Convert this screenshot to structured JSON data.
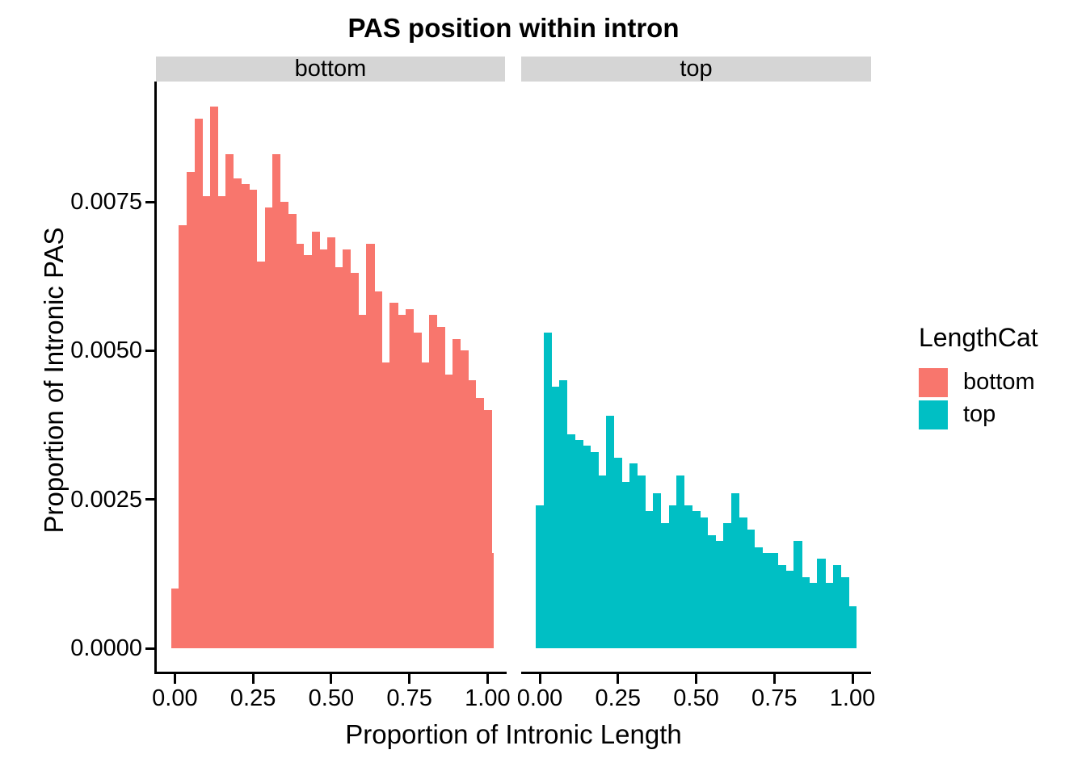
{
  "title": "PAS position within intron",
  "axes": {
    "x_title": "Proportion of Intronic Length",
    "y_title": "Proportion of Intronic PAS",
    "x_tick_labels": [
      "0.00",
      "0.25",
      "0.50",
      "0.75",
      "1.00"
    ],
    "x_tick_values": [
      0,
      0.25,
      0.5,
      0.75,
      1.0
    ],
    "y_tick_labels": [
      "0.0000",
      "0.0025",
      "0.0050",
      "0.0075"
    ],
    "y_tick_values": [
      0,
      0.0025,
      0.005,
      0.0075
    ]
  },
  "facet_strips": {
    "bottom": "bottom",
    "top": "top"
  },
  "legend": {
    "title": "LengthCat",
    "items": [
      {
        "label": "bottom",
        "color": "#F8766D"
      },
      {
        "label": "top",
        "color": "#00BFC4"
      }
    ]
  },
  "colors": {
    "bottom_fill": "#F8766D",
    "top_fill": "#00BFC4",
    "strip_bg": "#D5D5D5",
    "axis": "#000000"
  },
  "chart_data": {
    "type": "bar",
    "subtype": "faceted-histogram",
    "title": "PAS position within intron",
    "xlabel": "Proportion of Intronic Length",
    "ylabel": "Proportion of Intronic PAS",
    "bin_width": 0.025,
    "xlim": [
      -0.0125,
      1.04
    ],
    "ylim": [
      0,
      0.0095
    ],
    "grid": false,
    "legend_position": "right",
    "facets": [
      {
        "name": "bottom",
        "color": "#F8766D",
        "bin_centers": [
          0,
          0.025,
          0.05,
          0.075,
          0.1,
          0.125,
          0.15,
          0.175,
          0.2,
          0.225,
          0.25,
          0.275,
          0.3,
          0.325,
          0.35,
          0.375,
          0.4,
          0.425,
          0.45,
          0.475,
          0.5,
          0.525,
          0.55,
          0.575,
          0.6,
          0.625,
          0.65,
          0.675,
          0.7,
          0.725,
          0.75,
          0.775,
          0.8,
          0.825,
          0.85,
          0.875,
          0.9,
          0.925,
          0.95,
          0.975,
          1.0,
          1.0125
        ],
        "values": [
          0.001,
          0.0071,
          0.008,
          0.0089,
          0.0076,
          0.0091,
          0.0076,
          0.0083,
          0.0079,
          0.0078,
          0.0077,
          0.0065,
          0.0074,
          0.0083,
          0.0075,
          0.0073,
          0.0068,
          0.0066,
          0.007,
          0.0067,
          0.0069,
          0.0064,
          0.0067,
          0.0063,
          0.0056,
          0.0068,
          0.006,
          0.0048,
          0.0058,
          0.0056,
          0.0057,
          0.0053,
          0.0048,
          0.0056,
          0.0054,
          0.0046,
          0.0052,
          0.005,
          0.0045,
          0.0042,
          0.004,
          0.0016
        ],
        "last_bar_half_width": true
      },
      {
        "name": "top",
        "color": "#00BFC4",
        "bin_centers": [
          0,
          0.025,
          0.05,
          0.075,
          0.1,
          0.125,
          0.15,
          0.175,
          0.2,
          0.225,
          0.25,
          0.275,
          0.3,
          0.325,
          0.35,
          0.375,
          0.4,
          0.425,
          0.45,
          0.475,
          0.5,
          0.525,
          0.55,
          0.575,
          0.6,
          0.625,
          0.65,
          0.675,
          0.7,
          0.725,
          0.75,
          0.775,
          0.8,
          0.825,
          0.85,
          0.875,
          0.9,
          0.925,
          0.95,
          0.975,
          1.0
        ],
        "values": [
          0.0024,
          0.0053,
          0.0044,
          0.0045,
          0.0036,
          0.0035,
          0.0034,
          0.0033,
          0.0029,
          0.0039,
          0.0032,
          0.0028,
          0.0031,
          0.0029,
          0.0023,
          0.0026,
          0.0021,
          0.0024,
          0.0029,
          0.0024,
          0.0023,
          0.0022,
          0.0019,
          0.0018,
          0.0021,
          0.0026,
          0.0022,
          0.002,
          0.0017,
          0.0016,
          0.0016,
          0.0014,
          0.0013,
          0.0018,
          0.0012,
          0.0011,
          0.0015,
          0.0011,
          0.0014,
          0.0012,
          0.0007
        ],
        "last_bar_half_width": false
      }
    ]
  }
}
